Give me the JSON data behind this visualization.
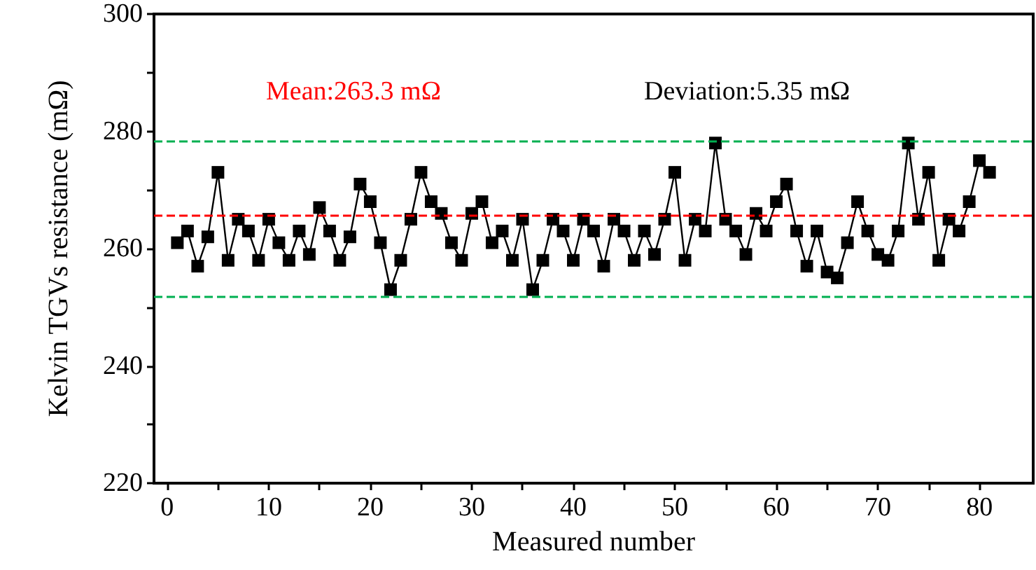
{
  "chart_data": {
    "type": "line",
    "xlabel": "Measured number",
    "ylabel": "Kelvin TGVs resistance (mΩ)",
    "annotations": [
      "Mean:263.3 mΩ",
      "Deviation:5.35 mΩ"
    ],
    "x": [
      1,
      2,
      3,
      4,
      5,
      6,
      7,
      8,
      9,
      10,
      11,
      12,
      13,
      14,
      15,
      16,
      17,
      18,
      19,
      20,
      21,
      22,
      23,
      24,
      25,
      26,
      27,
      28,
      29,
      30,
      31,
      32,
      33,
      34,
      35,
      36,
      37,
      38,
      39,
      40,
      41,
      42,
      43,
      44,
      45,
      46,
      47,
      48,
      49,
      50,
      51,
      52,
      53,
      54,
      55,
      56,
      57,
      58,
      59,
      60,
      61,
      62,
      63,
      64,
      65,
      66,
      67,
      68,
      69,
      70,
      71,
      72,
      73,
      74,
      75,
      76,
      77,
      78,
      79,
      80,
      81
    ],
    "series": [
      {
        "color": "#000000",
        "values": [
          261,
          263,
          257,
          262,
          273,
          258,
          265,
          263,
          258,
          265,
          261,
          258,
          263,
          259,
          267,
          263,
          258,
          262,
          271,
          268,
          261,
          253,
          258,
          265,
          273,
          268,
          266,
          261,
          258,
          266,
          268,
          261,
          263,
          258,
          265,
          253,
          258,
          265,
          263,
          258,
          265,
          263,
          257,
          265,
          263,
          258,
          263,
          259,
          265,
          273,
          258,
          265,
          263,
          278,
          265,
          263,
          259,
          266,
          263,
          268,
          271,
          263,
          257,
          263,
          256,
          255,
          261,
          268,
          263,
          259,
          258,
          263,
          278,
          265,
          273,
          258,
          265,
          263,
          268,
          275,
          273
        ]
      }
    ],
    "marker": "square",
    "line_style": "solid",
    "grid": false,
    "xlim": [
      -1.3,
      85.3
    ],
    "xticks": [
      0,
      {
        "value": 5,
        "label": null
      },
      10,
      {
        "value": 15,
        "label": null
      },
      20,
      {
        "value": 25,
        "label": null
      },
      30,
      {
        "value": 35,
        "label": null
      },
      40,
      {
        "value": 45,
        "label": null
      },
      50,
      {
        "value": 55,
        "label": null
      },
      60,
      {
        "value": 65,
        "label": null
      },
      70,
      {
        "value": 75,
        "label": null
      },
      80
    ],
    "ylim": [
      220,
      300
    ],
    "yticks": [
      220,
      {
        "value": 230,
        "label": null
      },
      240,
      {
        "value": 250,
        "label": null
      },
      260,
      {
        "value": 270,
        "label": null
      },
      280,
      {
        "value": 290,
        "label": null
      },
      300
    ],
    "ref_lines": [
      {
        "axis": "y",
        "value": 265.6,
        "color": "#ff0000",
        "line_style": "dashed"
      },
      {
        "axis": "y",
        "value": 278.4,
        "color": "#00b050",
        "line_style": "dashed"
      },
      {
        "axis": "y",
        "value": 251.8,
        "color": "#00b050",
        "line_style": "dashed"
      }
    ]
  }
}
